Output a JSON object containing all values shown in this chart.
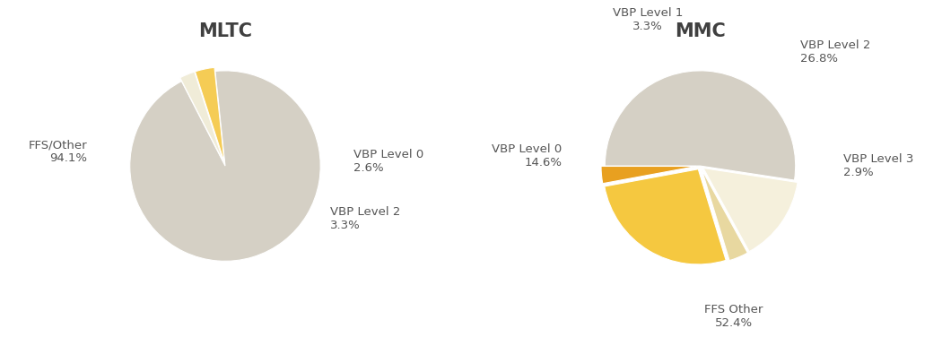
{
  "mltc_title": "MLTC",
  "mmc_title": "MMC",
  "mltc_labels": [
    "FFS/Other",
    "VBP Level 0",
    "VBP Level 2"
  ],
  "mltc_values": [
    94.1,
    2.6,
    3.3
  ],
  "mltc_colors": [
    "#d5d0c5",
    "#f0ecd8",
    "#f5cc55"
  ],
  "mltc_explode": [
    0.0,
    0.04,
    0.04
  ],
  "mltc_startangle": 96,
  "mmc_labels": [
    "FFS Other",
    "VBP Level 0",
    "VBP Level 1",
    "VBP Level 2",
    "VBP Level 3"
  ],
  "mmc_values": [
    52.4,
    14.6,
    3.3,
    26.8,
    2.9
  ],
  "mmc_colors": [
    "#d5d0c5",
    "#f5f0dc",
    "#e8d8a0",
    "#f5c840",
    "#e8a020"
  ],
  "mmc_explode": [
    0.0,
    0.04,
    0.04,
    0.04,
    0.04
  ],
  "mmc_startangle": 180,
  "label_color": "#555555",
  "title_color": "#404040",
  "bg_color": "#ffffff",
  "title_fontsize": 15,
  "label_fontsize": 9.5
}
